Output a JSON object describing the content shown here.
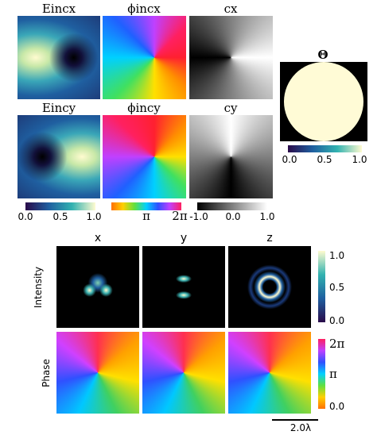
{
  "panels": {
    "titles": [
      "Eincx",
      "ϕincx",
      "cx",
      "Eincy",
      "ϕincy",
      "cy"
    ]
  },
  "colorbars": {
    "amplitude": [
      "0.0",
      "0.5",
      "1.0"
    ],
    "phase": [
      "π",
      "2π"
    ],
    "polarization": [
      "-1.0",
      "0.0",
      "1.0"
    ]
  },
  "theta": {
    "title": "Θ",
    "colorbar": [
      "0.0",
      "0.5",
      "1.0"
    ]
  },
  "focal": {
    "columns": [
      "x",
      "y",
      "z"
    ],
    "rows": [
      "Intensity",
      "Phase"
    ],
    "intensity_colorbar": [
      "1.0",
      "0.5",
      "0.0"
    ],
    "phase_colorbar": [
      "2π",
      "π",
      "0.0"
    ],
    "scale_bar": "2.0λ"
  }
}
